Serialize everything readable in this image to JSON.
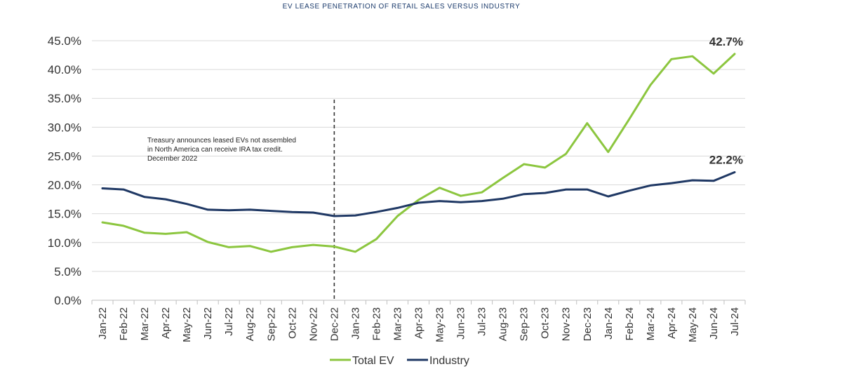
{
  "chart_data": {
    "type": "line",
    "title": "EV LEASE PENETRATION OF RETAIL SALES VERSUS INDUSTRY",
    "x": [
      "Jan-22",
      "Feb-22",
      "Mar-22",
      "Apr-22",
      "May-22",
      "Jun-22",
      "Jul-22",
      "Aug-22",
      "Sep-22",
      "Oct-22",
      "Nov-22",
      "Dec-22",
      "Jan-23",
      "Feb-23",
      "Mar-23",
      "Apr-23",
      "May-23",
      "Jun-23",
      "Jul-23",
      "Aug-23",
      "Sep-23",
      "Oct-23",
      "Nov-23",
      "Dec-23",
      "Jan-24",
      "Feb-24",
      "Mar-24",
      "Apr-24",
      "May-24",
      "Jun-24",
      "Jul-24"
    ],
    "series": [
      {
        "name": "Total EV",
        "color": "#8cc63f",
        "values": [
          13.5,
          12.9,
          11.7,
          11.5,
          11.8,
          10.1,
          9.2,
          9.4,
          8.4,
          9.2,
          9.6,
          9.3,
          8.4,
          10.6,
          14.6,
          17.4,
          19.5,
          18.1,
          18.7,
          21.2,
          23.6,
          23.0,
          25.4,
          30.7,
          25.7,
          31.4,
          37.3,
          41.8,
          42.3,
          39.3,
          42.7
        ]
      },
      {
        "name": "Industry",
        "color": "#1f3864",
        "values": [
          19.4,
          19.2,
          17.9,
          17.5,
          16.7,
          15.7,
          15.6,
          15.7,
          15.5,
          15.3,
          15.2,
          14.6,
          14.7,
          15.3,
          16.0,
          16.9,
          17.2,
          17.0,
          17.2,
          17.6,
          18.4,
          18.6,
          19.2,
          19.2,
          18.0,
          19.0,
          19.9,
          20.3,
          20.8,
          20.7,
          22.2
        ]
      }
    ],
    "yticks": [
      "0.0%",
      "5.0%",
      "10.0%",
      "15.0%",
      "20.0%",
      "25.0%",
      "30.0%",
      "35.0%",
      "40.0%",
      "45.0%"
    ],
    "ylim": [
      0,
      45
    ],
    "grid": true,
    "legend_placement": "bottom-center",
    "end_labels": [
      "42.7%",
      "22.2%"
    ],
    "annotation": {
      "at": "Dec-22",
      "lines": [
        "Treasury announces leased EVs not assembled",
        " in North America can receive IRA tax credit.",
        "December 2022"
      ]
    }
  }
}
